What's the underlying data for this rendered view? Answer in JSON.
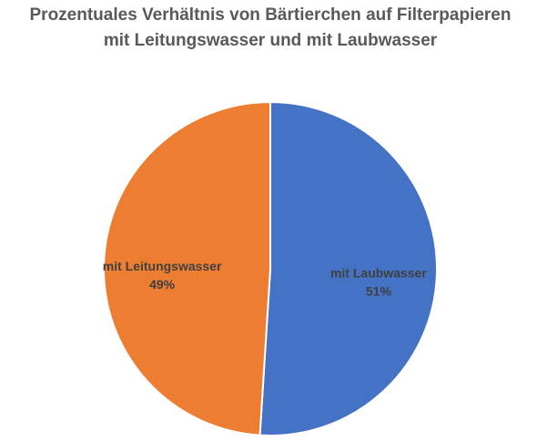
{
  "chart_data": {
    "type": "pie",
    "title": [
      "Prozentuales Verhältnis von Bärtierchen auf Filterpapieren",
      "mit Leitungswasser und mit Laubwasser"
    ],
    "categories": [
      "mit Laubwasser",
      "mit Leitungswasser"
    ],
    "values": [
      51,
      49
    ],
    "value_labels": [
      "51%",
      "49%"
    ],
    "colors": [
      "#4472c4",
      "#ed7d31"
    ]
  }
}
